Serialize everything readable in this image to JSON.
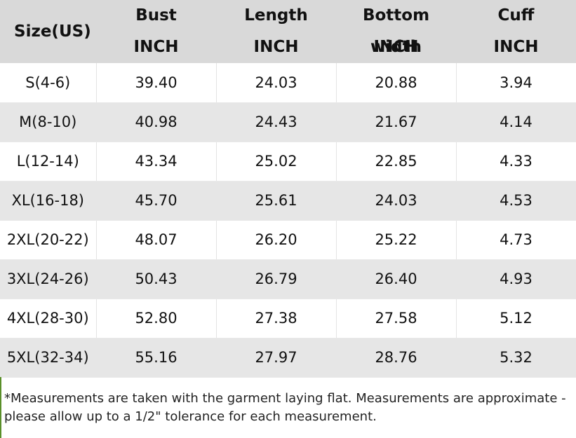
{
  "table": {
    "headers": [
      {
        "name": "Size(US)",
        "unit": ""
      },
      {
        "name": "Bust",
        "unit": "INCH"
      },
      {
        "name": "Length",
        "unit": "INCH"
      },
      {
        "name": "Bottom width",
        "unit": "INCH"
      },
      {
        "name": "Cuff",
        "unit": "INCH"
      }
    ],
    "rows": [
      [
        "S(4-6)",
        "39.40",
        "24.03",
        "20.88",
        "3.94"
      ],
      [
        "M(8-10)",
        "40.98",
        "24.43",
        "21.67",
        "4.14"
      ],
      [
        "L(12-14)",
        "43.34",
        "25.02",
        "22.85",
        "4.33"
      ],
      [
        "XL(16-18)",
        "45.70",
        "25.61",
        "24.03",
        "4.53"
      ],
      [
        "2XL(20-22)",
        "48.07",
        "26.20",
        "25.22",
        "4.73"
      ],
      [
        "3XL(24-26)",
        "50.43",
        "26.79",
        "26.40",
        "4.93"
      ],
      [
        "4XL(28-30)",
        "52.80",
        "27.38",
        "27.58",
        "5.12"
      ],
      [
        "5XL(32-34)",
        "55.16",
        "27.97",
        "28.76",
        "5.32"
      ]
    ]
  },
  "note": {
    "line1": "*Measurements are taken with the garment laying flat. Measurements are approximate -",
    "line2": "please allow up to a 1/2\" tolerance for each measurement."
  }
}
